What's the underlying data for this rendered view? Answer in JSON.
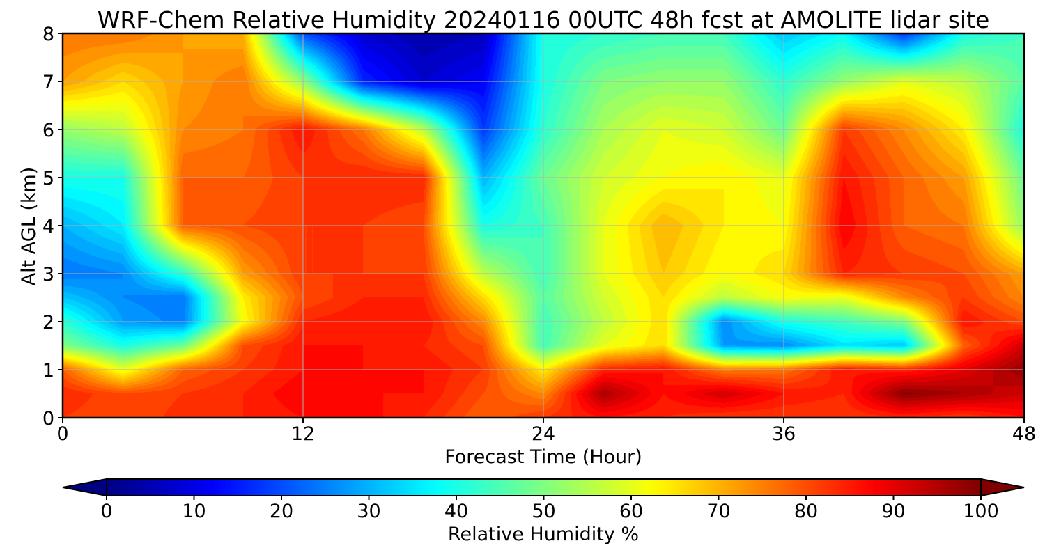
{
  "chart_data": {
    "type": "heatmap",
    "title": "WRF-Chem Relative Humidity 20240116 00UTC 48h fcst at AMOLITE lidar site",
    "xlabel": "Forecast Time (Hour)",
    "ylabel": "Alt AGL (km)",
    "xlim": [
      0,
      48
    ],
    "ylim": [
      0,
      8
    ],
    "x_ticks": [
      "0",
      "12",
      "24",
      "36",
      "48"
    ],
    "y_ticks": [
      "0",
      "1",
      "2",
      "3",
      "4",
      "5",
      "6",
      "7",
      "8"
    ],
    "grid": true,
    "colorscale": "jet",
    "colorbar": {
      "label": "Relative Humidity %",
      "orientation": "horizontal",
      "placement": "bottom",
      "extend": "both",
      "range": [
        0,
        100
      ],
      "ticks": [
        "0",
        "10",
        "20",
        "30",
        "40",
        "50",
        "60",
        "70",
        "80",
        "90",
        "100"
      ]
    },
    "x": [
      0,
      3,
      6,
      9,
      12,
      15,
      18,
      21,
      24,
      27,
      30,
      33,
      36,
      39,
      42,
      45,
      48
    ],
    "y": [
      0,
      0.5,
      1,
      1.5,
      2,
      2.5,
      3,
      4,
      5,
      6,
      7,
      8
    ],
    "z": [
      [
        82,
        80,
        83,
        84,
        86,
        87,
        84,
        78,
        82,
        86,
        84,
        82,
        82,
        82,
        84,
        82,
        86
      ],
      [
        84,
        80,
        82,
        84,
        88,
        86,
        86,
        80,
        74,
        96,
        86,
        92,
        86,
        84,
        99,
        96,
        92
      ],
      [
        78,
        60,
        78,
        82,
        86,
        86,
        86,
        82,
        64,
        84,
        86,
        75,
        76,
        86,
        84,
        90,
        98
      ],
      [
        50,
        40,
        48,
        80,
        86,
        86,
        84,
        80,
        44,
        60,
        66,
        28,
        26,
        35,
        32,
        78,
        92
      ],
      [
        42,
        28,
        25,
        62,
        84,
        86,
        86,
        74,
        44,
        56,
        66,
        26,
        40,
        44,
        50,
        86,
        80
      ],
      [
        32,
        26,
        24,
        64,
        80,
        84,
        84,
        66,
        46,
        58,
        66,
        56,
        62,
        60,
        74,
        82,
        74
      ],
      [
        24,
        26,
        42,
        72,
        82,
        82,
        82,
        56,
        44,
        60,
        68,
        62,
        66,
        84,
        82,
        80,
        72
      ],
      [
        30,
        36,
        78,
        80,
        82,
        82,
        80,
        40,
        44,
        60,
        70,
        64,
        62,
        88,
        78,
        76,
        52
      ],
      [
        40,
        40,
        78,
        78,
        82,
        84,
        84,
        30,
        48,
        58,
        62,
        64,
        60,
        86,
        78,
        72,
        48
      ],
      [
        52,
        56,
        74,
        76,
        86,
        76,
        56,
        18,
        42,
        54,
        60,
        58,
        48,
        82,
        74,
        64,
        40
      ],
      [
        72,
        66,
        72,
        76,
        52,
        16,
        8,
        12,
        40,
        50,
        52,
        52,
        42,
        52,
        60,
        56,
        46
      ],
      [
        76,
        76,
        72,
        70,
        20,
        8,
        4,
        6,
        40,
        42,
        44,
        44,
        32,
        38,
        18,
        40,
        44
      ]
    ]
  }
}
